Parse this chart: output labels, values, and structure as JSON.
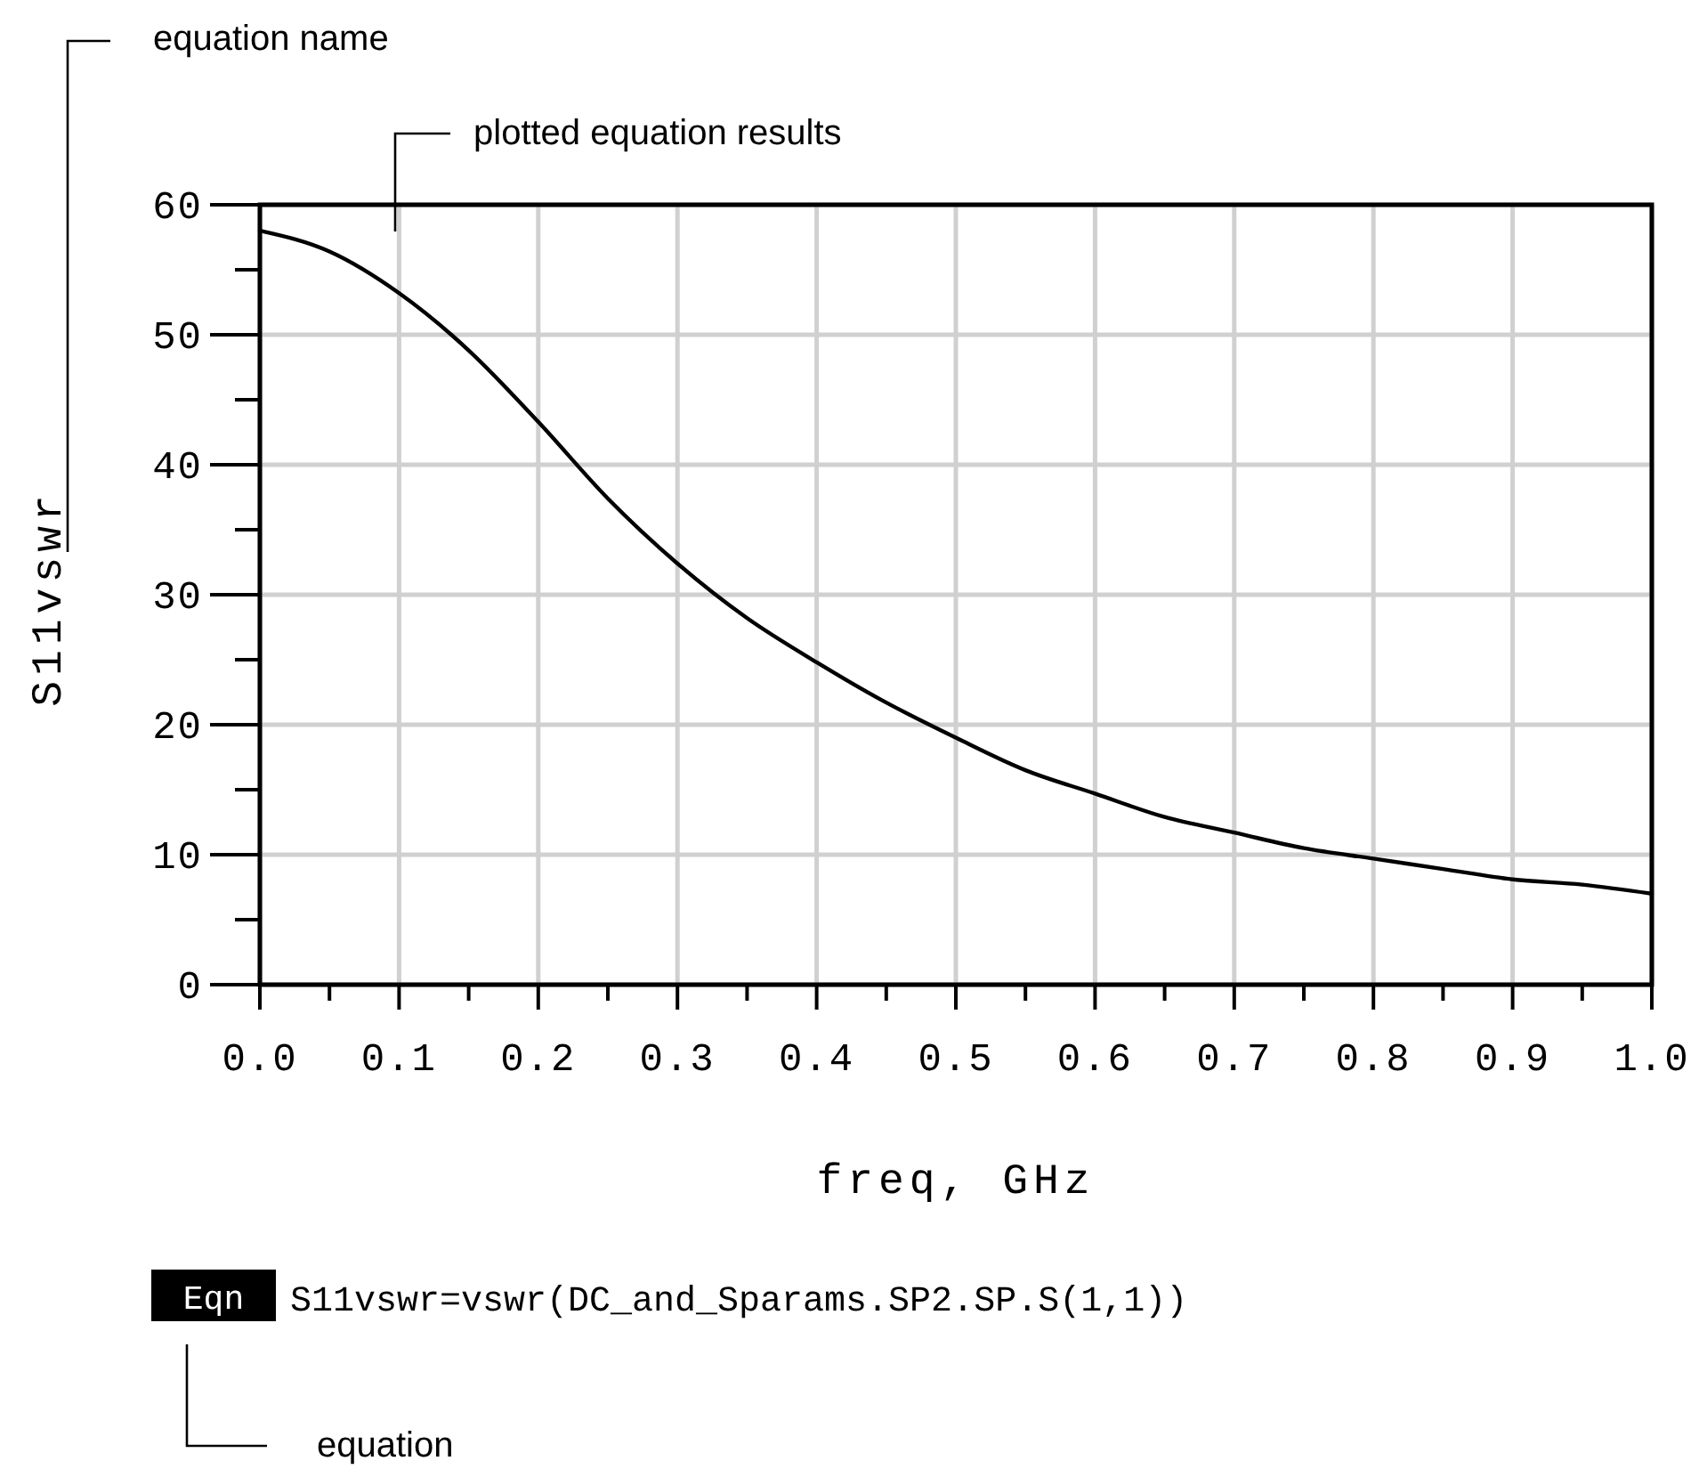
{
  "chart_data": {
    "type": "line",
    "xlabel": "freq, GHz",
    "ylabel": "S11vswr",
    "x": [
      0,
      0.05,
      0.1,
      0.15,
      0.2,
      0.25,
      0.3,
      0.35,
      0.4,
      0.45,
      0.5,
      0.55,
      0.6,
      0.65,
      0.7,
      0.75,
      0.8,
      0.85,
      0.9,
      0.95,
      1.0
    ],
    "series": [
      {
        "color": "#000000",
        "values": [
          58,
          56.4,
          53.2,
          48.8,
          43.3,
          37.4,
          32.4,
          28.2,
          24.8,
          21.7,
          19.0,
          16.5,
          14.7,
          12.9,
          11.7,
          10.5,
          9.7,
          8.9,
          8.1,
          7.7,
          7.0
        ]
      }
    ],
    "xlim": [
      0,
      1
    ],
    "xticks": [
      {
        "value": 0,
        "label": "0.0"
      },
      {
        "value": 0.05,
        "label": null
      },
      {
        "value": 0.1,
        "label": "0.1"
      },
      {
        "value": 0.15,
        "label": null
      },
      {
        "value": 0.2,
        "label": "0.2"
      },
      {
        "value": 0.25,
        "label": null
      },
      {
        "value": 0.3,
        "label": "0.3"
      },
      {
        "value": 0.35,
        "label": null
      },
      {
        "value": 0.4,
        "label": "0.4"
      },
      {
        "value": 0.45,
        "label": null
      },
      {
        "value": 0.5,
        "label": "0.5"
      },
      {
        "value": 0.55,
        "label": null
      },
      {
        "value": 0.6,
        "label": "0.6"
      },
      {
        "value": 0.65,
        "label": null
      },
      {
        "value": 0.7,
        "label": "0.7"
      },
      {
        "value": 0.75,
        "label": null
      },
      {
        "value": 0.8,
        "label": "0.8"
      },
      {
        "value": 0.85,
        "label": null
      },
      {
        "value": 0.9,
        "label": "0.9"
      },
      {
        "value": 0.95,
        "label": null
      },
      {
        "value": 1,
        "label": "1.0"
      }
    ],
    "ylim": [
      0,
      60
    ],
    "yticks": [
      0,
      {
        "value": 5,
        "label": null
      },
      10,
      {
        "value": 15,
        "label": null
      },
      20,
      {
        "value": 25,
        "label": null
      },
      30,
      {
        "value": 35,
        "label": null
      },
      40,
      {
        "value": 45,
        "label": null
      },
      50,
      {
        "value": 55,
        "label": null
      },
      60
    ],
    "grid": true,
    "marker": "none",
    "line_style": "solid",
    "annotations": [
      "equation name",
      "plotted equation results",
      "Eqn",
      "S11vswr=vswr(DC_and_Sparams.SP2.SP.S(1,1))",
      "equation"
    ]
  }
}
